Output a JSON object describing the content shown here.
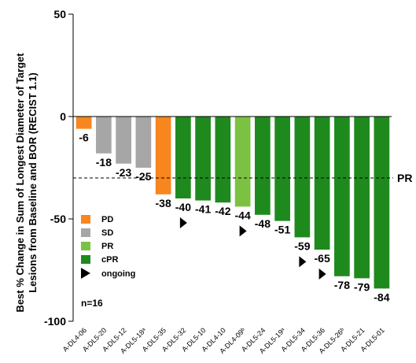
{
  "chart_data": {
    "type": "bar",
    "ylabel": "Best % Change in Sum of Longest Diameter of Target Lesions from Baseline and BOR (RECIST 1.1)",
    "ylim": [
      -100,
      50
    ],
    "yticks": [
      "50",
      "0",
      "-50",
      "-100"
    ],
    "yticks_values": [
      50,
      0,
      -50,
      -100
    ],
    "categories": [
      "A-DL4-06",
      "A-DL5-20",
      "A-DL5-12",
      "A-DL5-18ᵃ",
      "A-DL5-35",
      "A-DL5-32",
      "A-DL5-10",
      "A-DL4-10",
      "A-DL4-09ᵇ",
      "A-DL5-24",
      "A-DL5-19ᵃ",
      "A-DL5-34",
      "A-DL5-36",
      "A-DL5-26ᵇ",
      "A-DL5-21",
      "A-DL5-01"
    ],
    "values": [
      -6,
      -18,
      -23,
      -25,
      -38,
      -40,
      -41,
      -42,
      -44,
      -48,
      -51,
      -59,
      -65,
      -78,
      -79,
      -84
    ],
    "value_labels": [
      "-6",
      "-18",
      "-23",
      "-25",
      "-38",
      "-40",
      "-41",
      "-42",
      "-44",
      "-48",
      "-51",
      "-59",
      "-65",
      "-78",
      "-79",
      "-84"
    ],
    "response": [
      "PD",
      "SD",
      "SD",
      "SD",
      "PD",
      "cPR",
      "cPR",
      "cPR",
      "PR",
      "cPR",
      "cPR",
      "cPR",
      "cPR",
      "cPR",
      "cPR",
      "cPR"
    ],
    "ongoing": [
      false,
      false,
      false,
      false,
      false,
      true,
      false,
      false,
      true,
      false,
      false,
      true,
      true,
      false,
      false,
      false
    ],
    "colors": {
      "PD": "#f7861e",
      "SD": "#a6a6a6",
      "PR": "#7cc242",
      "cPR": "#1e8a1e"
    },
    "legend": [
      {
        "key": "PD",
        "label": "PD"
      },
      {
        "key": "SD",
        "label": "SD"
      },
      {
        "key": "PR",
        "label": "PR"
      },
      {
        "key": "cPR",
        "label": "cPR"
      }
    ],
    "ongoing_label": "ongoing",
    "reference_line": {
      "value": -30,
      "label": "PR"
    },
    "n_label": "n=16",
    "grid": false,
    "legend_position": "bottom-left"
  }
}
